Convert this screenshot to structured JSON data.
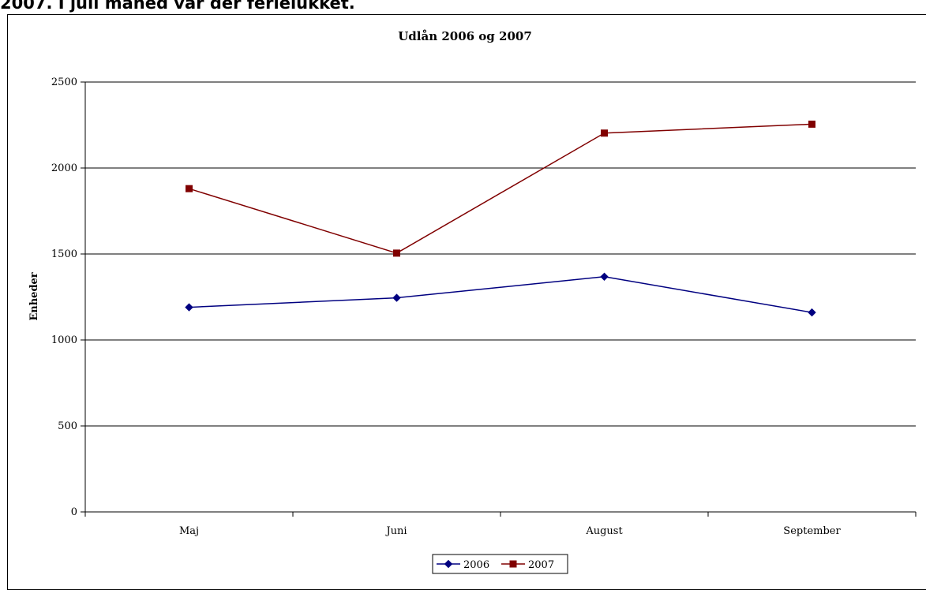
{
  "doc": {
    "heading": "2007. I juli måned var der ferielukket."
  },
  "chart_data": {
    "type": "line",
    "title": "Udlån 2006 og 2007",
    "xlabel": "",
    "ylabel": "Enheder",
    "categories": [
      "Maj",
      "Juni",
      "August",
      "September"
    ],
    "ylim": [
      0,
      2500
    ],
    "yticks": [
      0,
      500,
      1000,
      1500,
      2000,
      2500
    ],
    "grid": true,
    "legend_position": "bottom",
    "series": [
      {
        "name": "2006",
        "values": [
          1190,
          1245,
          1368,
          1160
        ],
        "color": "#000080",
        "marker": "diamond"
      },
      {
        "name": "2007",
        "values": [
          1880,
          1505,
          2203,
          2255
        ],
        "color": "#800000",
        "marker": "square"
      }
    ]
  }
}
